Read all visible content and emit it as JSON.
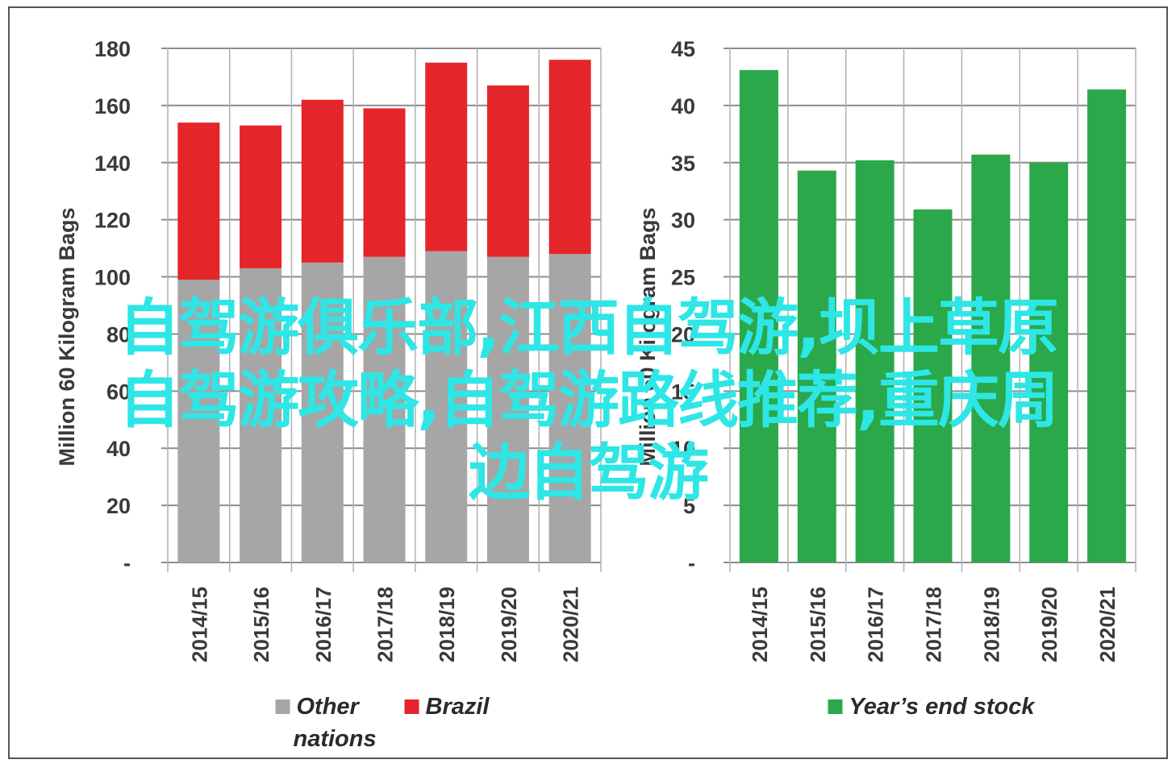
{
  "chart_data": [
    {
      "type": "bar",
      "stacked": true,
      "ylabel": "Million 60 Kilogram Bags",
      "ylim": [
        0,
        180
      ],
      "yticks": [
        0,
        20,
        40,
        60,
        80,
        100,
        120,
        140,
        160,
        180
      ],
      "categories": [
        "2014/15",
        "2015/16",
        "2016/17",
        "2017/18",
        "2018/19",
        "2019/20",
        "2020/21"
      ],
      "series": [
        {
          "name": "Other nations",
          "color": "#a6a6a6",
          "values": [
            99,
            103,
            105,
            107,
            109,
            107,
            108
          ]
        },
        {
          "name": "Brazil",
          "color": "#e4252a",
          "values": [
            55,
            50,
            57,
            52,
            66,
            60,
            68
          ]
        }
      ],
      "legend": [
        "Other nations",
        "Brazil"
      ],
      "legend_position": "bottom",
      "grid": true
    },
    {
      "type": "bar",
      "ylabel": "Million 60 Kilogram Bags",
      "ylim": [
        0,
        45
      ],
      "yticks": [
        0,
        5,
        10,
        15,
        20,
        25,
        30,
        35,
        40,
        45
      ],
      "categories": [
        "2014/15",
        "2015/16",
        "2016/17",
        "2017/18",
        "2018/19",
        "2019/20",
        "2020/21"
      ],
      "series": [
        {
          "name": "Year’s end stock",
          "color": "#2aa84a",
          "values": [
            43.1,
            34.3,
            35.2,
            30.9,
            35.7,
            35.0,
            41.4
          ]
        }
      ],
      "legend": [
        "Year’s end stock"
      ],
      "legend_position": "bottom",
      "grid": true
    }
  ],
  "overlay_text": {
    "line1": "自驾游俱乐部,江西自驾游,坝上草原",
    "line2": "自驾游攻略,自驾游路线推荐,重庆周",
    "line3": "边自驾游"
  }
}
